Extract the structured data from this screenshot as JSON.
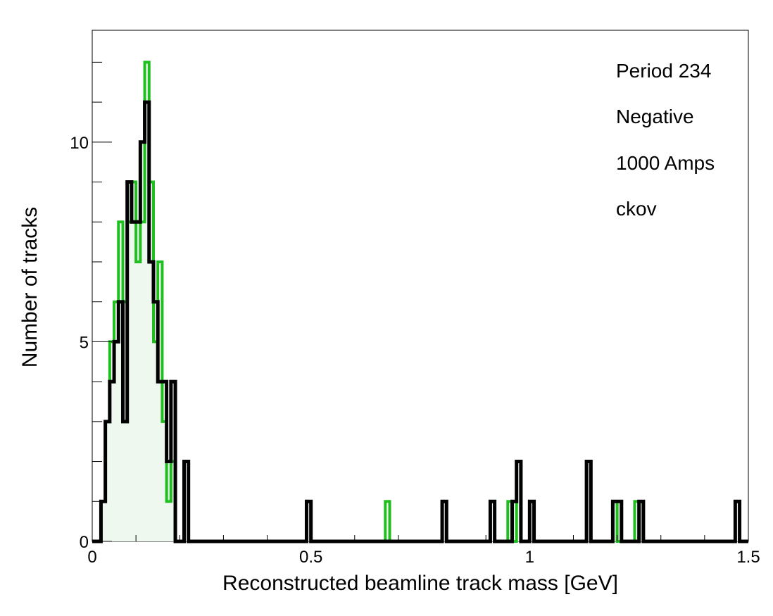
{
  "chart_data": {
    "type": "histogram",
    "title": "",
    "xlabel": "Reconstructed beamline track mass [GeV]",
    "ylabel": "Number of tracks",
    "xlim": [
      0,
      1.5
    ],
    "ylim": [
      0,
      12.8
    ],
    "bin_width": 0.01,
    "x_ticks": [
      {
        "value": 0,
        "label": "0"
      },
      {
        "value": 0.5,
        "label": "0.5"
      },
      {
        "value": 1,
        "label": "1"
      },
      {
        "value": 1.5,
        "label": "1.5"
      }
    ],
    "y_ticks": [
      {
        "value": 0,
        "label": "0"
      },
      {
        "value": 5,
        "label": "5"
      },
      {
        "value": 10,
        "label": "10"
      }
    ],
    "annotations": [
      "Period 234",
      "Negative",
      "1000 Amps",
      "ckov"
    ],
    "series": [
      {
        "color": "#1fbf1f",
        "fill": "none",
        "bin_edges": [
          0.0,
          0.01,
          0.02,
          0.03,
          0.04,
          0.05,
          0.06,
          0.07,
          0.08,
          0.09,
          0.1,
          0.11,
          0.12,
          0.13,
          0.14,
          0.15,
          0.16,
          0.17,
          0.18,
          0.19,
          0.2,
          0.21,
          0.22
        ],
        "values": [
          0,
          0,
          1,
          3,
          5,
          6,
          8,
          6,
          8,
          9,
          7,
          8,
          12,
          9,
          5,
          7,
          3,
          1,
          2,
          0,
          0,
          2
        ],
        "sparse_bins": [
          [
            0.49,
            1
          ],
          [
            0.67,
            1
          ],
          [
            0.8,
            1
          ],
          [
            0.91,
            1
          ],
          [
            0.95,
            1
          ],
          [
            0.97,
            2
          ],
          [
            1.0,
            1
          ],
          [
            1.13,
            2
          ],
          [
            1.19,
            1
          ],
          [
            1.24,
            1
          ],
          [
            1.25,
            1
          ],
          [
            1.47,
            1
          ]
        ]
      },
      {
        "color": "#000000",
        "fill": "#eef8ee",
        "bin_edges": [
          0.0,
          0.01,
          0.02,
          0.03,
          0.04,
          0.05,
          0.06,
          0.07,
          0.08,
          0.09,
          0.1,
          0.11,
          0.12,
          0.13,
          0.14,
          0.15,
          0.16,
          0.17,
          0.18,
          0.19,
          0.2,
          0.21,
          0.22
        ],
        "values": [
          0,
          0,
          1,
          3,
          4,
          5,
          6,
          3,
          9,
          8,
          8,
          10,
          11,
          7,
          6,
          4,
          4,
          2,
          4,
          0,
          0,
          2
        ],
        "sparse_bins": [
          [
            0.49,
            1
          ],
          [
            0.8,
            1
          ],
          [
            0.91,
            1
          ],
          [
            0.96,
            1
          ],
          [
            0.97,
            2
          ],
          [
            1.0,
            1
          ],
          [
            1.13,
            2
          ],
          [
            1.19,
            1
          ],
          [
            1.2,
            1
          ],
          [
            1.25,
            1
          ],
          [
            1.47,
            1
          ]
        ]
      }
    ]
  }
}
